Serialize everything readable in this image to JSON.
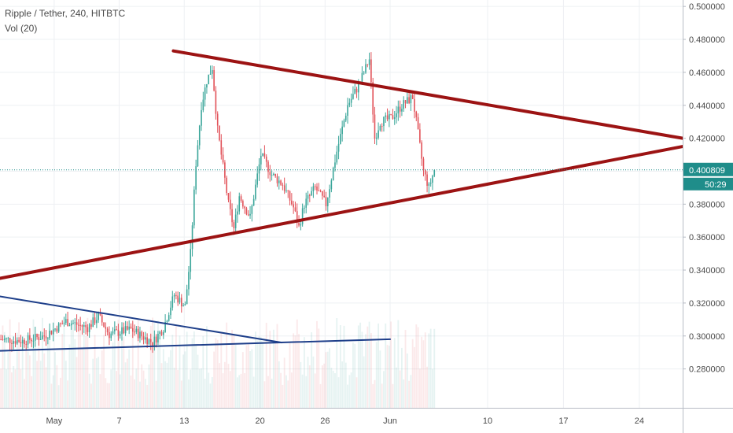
{
  "chart_data": {
    "type": "candlestick",
    "title": "Ripple / Tether, 240, HITBTC",
    "volume_label": "Vol (20)",
    "colors": {
      "up": "#3ba69a",
      "down": "#e2535a",
      "trendline": "#9c1313",
      "support_line": "#1e3f8a",
      "last_price_line": "#1f8d8a"
    },
    "y_axis": {
      "range": [
        0.265,
        0.502
      ],
      "ticks": [
        "0.500000",
        "0.480000",
        "0.460000",
        "0.440000",
        "0.420000",
        "0.400000",
        "0.380000",
        "0.360000",
        "0.340000",
        "0.320000",
        "0.300000",
        "0.280000"
      ]
    },
    "x_axis": {
      "range": [
        "2019-04-26",
        "2019-06-28"
      ],
      "ticks": [
        {
          "date": "2019-05-01",
          "label": "May"
        },
        {
          "date": "2019-05-07",
          "label": "7"
        },
        {
          "date": "2019-05-13",
          "label": "13"
        },
        {
          "date": "2019-05-20",
          "label": "20"
        },
        {
          "date": "2019-05-26",
          "label": "26"
        },
        {
          "date": "2019-06-01",
          "label": "Jun"
        },
        {
          "date": "2019-06-10",
          "label": "10"
        },
        {
          "date": "2019-06-17",
          "label": "17"
        },
        {
          "date": "2019-06-24",
          "label": "24"
        }
      ]
    },
    "last_price": {
      "value": 0.400809,
      "label": "0.400809",
      "countdown": "50:29"
    },
    "price_path": [
      [
        "2019-04-26",
        0.298
      ],
      [
        "2019-04-28",
        0.297
      ],
      [
        "2019-04-30",
        0.3
      ],
      [
        "2019-05-02",
        0.309
      ],
      [
        "2019-05-04",
        0.305
      ],
      [
        "2019-05-05",
        0.312
      ],
      [
        "2019-05-06",
        0.301
      ],
      [
        "2019-05-08",
        0.304
      ],
      [
        "2019-05-10",
        0.296
      ],
      [
        "2019-05-11",
        0.305
      ],
      [
        "2019-05-12",
        0.325
      ],
      [
        "2019-05-13",
        0.318
      ],
      [
        "2019-05-13T12",
        0.35
      ],
      [
        "2019-05-14",
        0.405
      ],
      [
        "2019-05-14T12",
        0.44
      ],
      [
        "2019-05-15",
        0.455
      ],
      [
        "2019-05-15T12",
        0.463
      ],
      [
        "2019-05-16",
        0.425
      ],
      [
        "2019-05-17",
        0.38
      ],
      [
        "2019-05-17T12",
        0.365
      ],
      [
        "2019-05-18",
        0.385
      ],
      [
        "2019-05-19",
        0.372
      ],
      [
        "2019-05-20",
        0.41
      ],
      [
        "2019-05-21",
        0.398
      ],
      [
        "2019-05-22",
        0.392
      ],
      [
        "2019-05-23",
        0.378
      ],
      [
        "2019-05-23T12",
        0.366
      ],
      [
        "2019-05-24",
        0.38
      ],
      [
        "2019-05-25",
        0.39
      ],
      [
        "2019-05-26",
        0.38
      ],
      [
        "2019-05-27",
        0.412
      ],
      [
        "2019-05-28",
        0.44
      ],
      [
        "2019-05-29",
        0.452
      ],
      [
        "2019-05-30",
        0.468
      ],
      [
        "2019-05-30T12",
        0.42
      ],
      [
        "2019-05-31",
        0.43
      ],
      [
        "2019-06-01",
        0.432
      ],
      [
        "2019-06-02",
        0.44
      ],
      [
        "2019-06-03",
        0.445
      ],
      [
        "2019-06-04",
        0.4
      ],
      [
        "2019-06-04T12",
        0.39
      ],
      [
        "2019-06-05",
        0.400809
      ]
    ],
    "volume": {
      "note": "volume bars shown beneath price, values not labeled"
    },
    "trendlines": [
      {
        "name": "descending-resistance",
        "points": [
          [
            "2019-05-12",
            0.473
          ],
          [
            "2019-06-28",
            0.42
          ]
        ]
      },
      {
        "name": "ascending-support",
        "points": [
          [
            "2019-04-26",
            0.335
          ],
          [
            "2019-06-28",
            0.415
          ]
        ]
      },
      {
        "name": "small-descending",
        "points": [
          [
            "2019-04-26",
            0.324
          ],
          [
            "2019-05-22",
            0.296
          ]
        ]
      },
      {
        "name": "small-ascending",
        "points": [
          [
            "2019-04-26",
            0.291
          ],
          [
            "2019-06-01",
            0.298
          ]
        ]
      }
    ],
    "grid": true,
    "legend_position": "top-left"
  }
}
